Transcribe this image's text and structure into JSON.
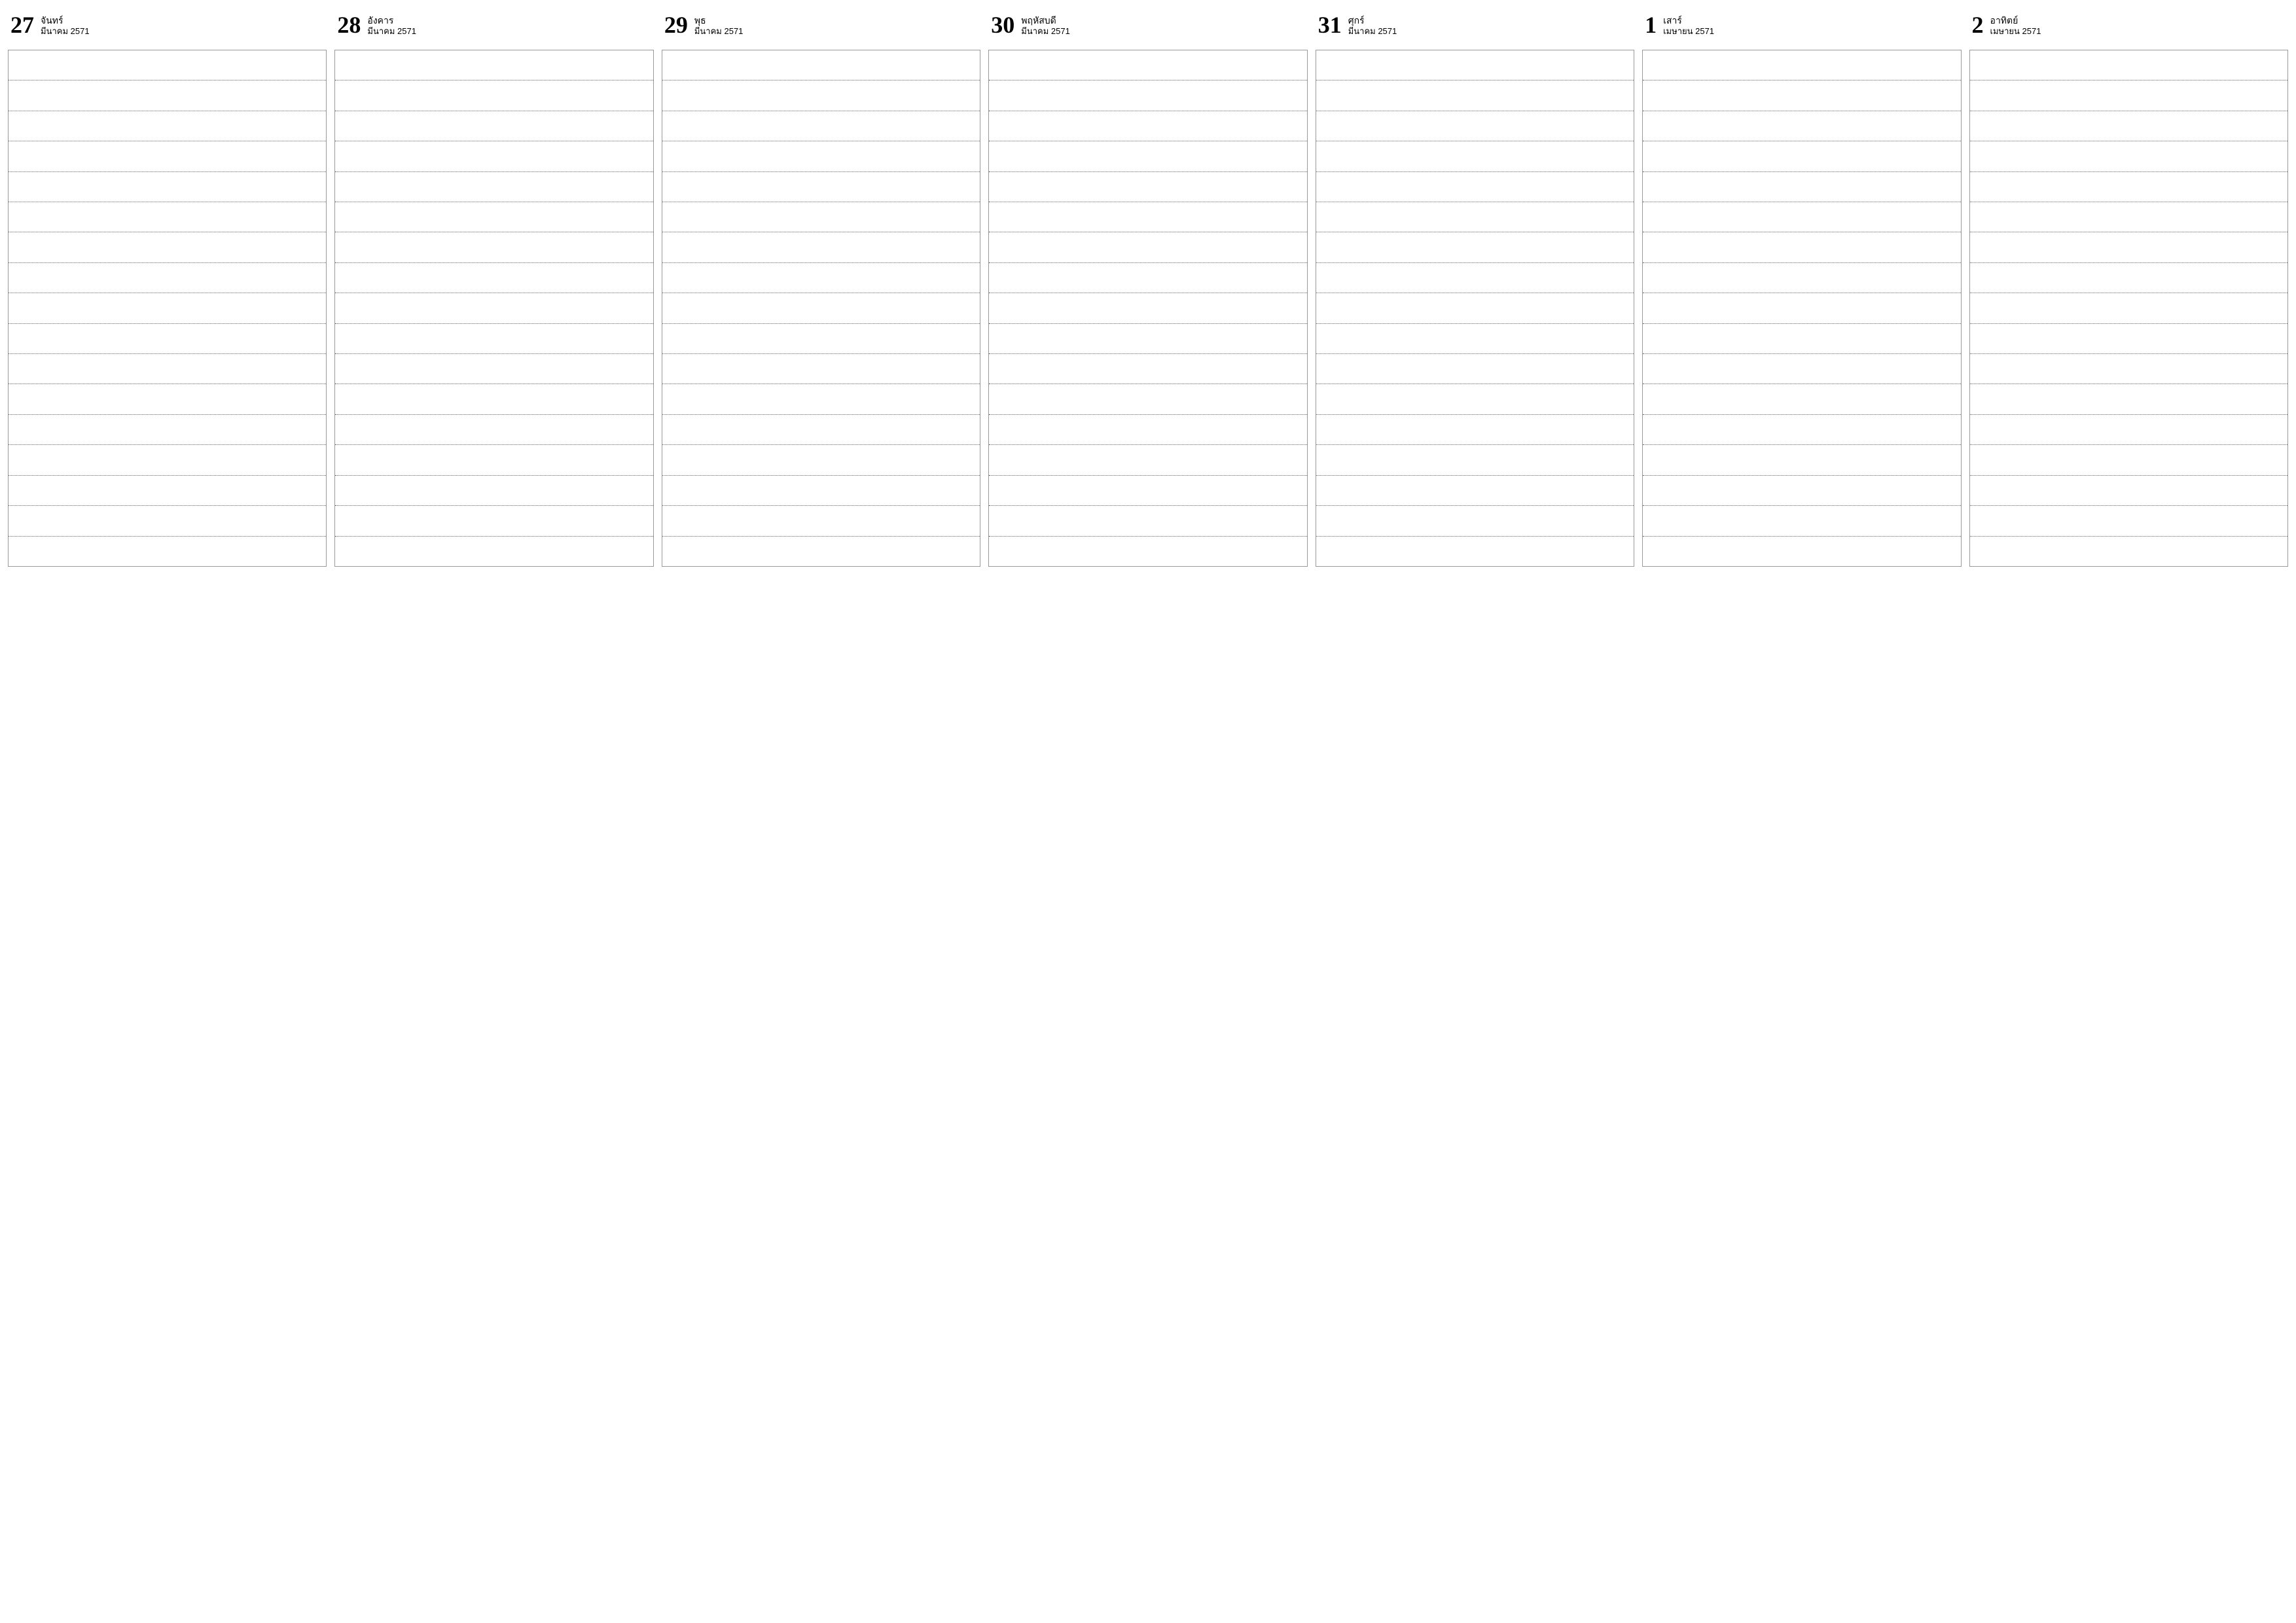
{
  "calendar": {
    "background_color": "#ffffff",
    "border_color": "#999999",
    "line_pattern": "dotted",
    "line_color": "#666666",
    "rows_per_day": 17,
    "day_number_fontsize": 36,
    "day_number_font": "serif",
    "day_name_fontsize": 14,
    "day_month_fontsize": 13,
    "text_color": "#000000",
    "days": [
      {
        "number": "27",
        "name": "จันทร์",
        "month": "มีนาคม 2571"
      },
      {
        "number": "28",
        "name": "อังคาร",
        "month": "มีนาคม 2571"
      },
      {
        "number": "29",
        "name": "พุธ",
        "month": "มีนาคม 2571"
      },
      {
        "number": "30",
        "name": "พฤหัสบดี",
        "month": "มีนาคม 2571"
      },
      {
        "number": "31",
        "name": "ศุกร์",
        "month": "มีนาคม 2571"
      },
      {
        "number": "1",
        "name": "เสาร์",
        "month": "เมษายน 2571"
      },
      {
        "number": "2",
        "name": "อาทิตย์",
        "month": "เมษายน 2571"
      }
    ]
  }
}
